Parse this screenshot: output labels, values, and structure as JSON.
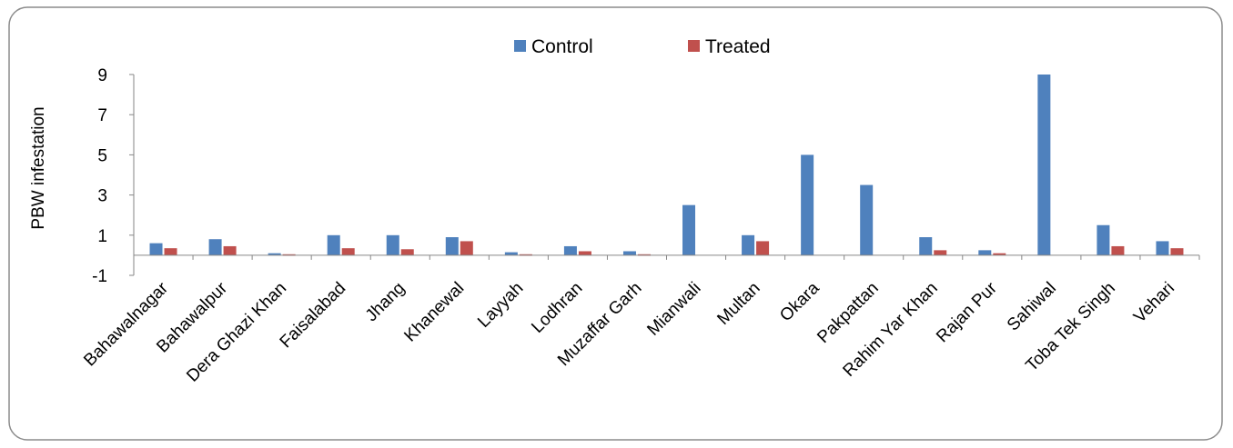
{
  "chart_data": {
    "type": "bar",
    "title": "",
    "xlabel": "",
    "ylabel": "PBW infestation",
    "ylim": [
      -1,
      9
    ],
    "yticks": [
      "-1",
      "1",
      "3",
      "5",
      "7",
      "9"
    ],
    "grid": false,
    "legend_position": "top-center",
    "categories": [
      "Bahawalnagar",
      "Bahawalpur",
      "Dera Ghazi Khan",
      "Faisalabad",
      "Jhang",
      "Khanewal",
      "Layyah",
      "Lodhran",
      "Muzaffar Garh",
      "Mianwali",
      "Multan",
      "Okara",
      "Pakpattan",
      "Rahim Yar Khan",
      "Rajan Pur",
      "Sahiwal",
      "Toba Tek Singh",
      "Vehari"
    ],
    "series": [
      {
        "name": "Control",
        "color": "#4f81bd",
        "values": [
          0.6,
          0.8,
          0.1,
          1.0,
          1.0,
          0.9,
          0.15,
          0.45,
          0.2,
          2.5,
          1.0,
          5.0,
          3.5,
          0.9,
          0.25,
          9.0,
          1.5,
          0.7
        ]
      },
      {
        "name": "Treated",
        "color": "#c0504d",
        "values": [
          0.35,
          0.45,
          0.05,
          0.35,
          0.3,
          0.7,
          0.05,
          0.2,
          0.05,
          0.0,
          0.7,
          0.0,
          0.0,
          0.25,
          0.1,
          0.0,
          0.45,
          0.35
        ]
      }
    ]
  }
}
